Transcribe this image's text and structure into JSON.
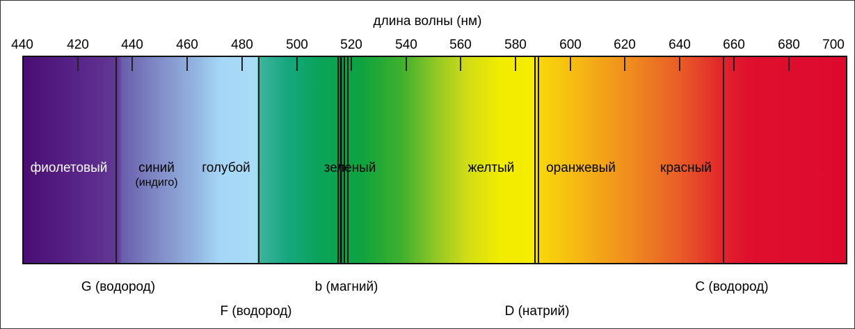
{
  "axis_title": "длина волны (нм)",
  "tick_labels": [
    "440",
    "420",
    "440",
    "460",
    "480",
    "500",
    "520",
    "540",
    "560",
    "580",
    "600",
    "620",
    "640",
    "660",
    "680",
    "700"
  ],
  "bands": [
    {
      "name": "фиолетовый",
      "color": "#ffffff"
    },
    {
      "name": "синий",
      "sub": "(индиго)",
      "color": "#000000"
    },
    {
      "name": "голубой",
      "color": "#000000"
    },
    {
      "name": "зеленый",
      "color": "#000000"
    },
    {
      "name": "желтый",
      "color": "#000000"
    },
    {
      "name": "оранжевый",
      "color": "#000000"
    },
    {
      "name": "красный",
      "color": "#000000"
    }
  ],
  "fraunhofer_lines": [
    {
      "label": "G (водород)",
      "row": 1
    },
    {
      "label": "F (водород)",
      "row": 2
    },
    {
      "label": "b (магний)",
      "row": 1
    },
    {
      "label": "D (натрий)",
      "row": 2
    },
    {
      "label": "C (водород)",
      "row": 1
    }
  ]
}
